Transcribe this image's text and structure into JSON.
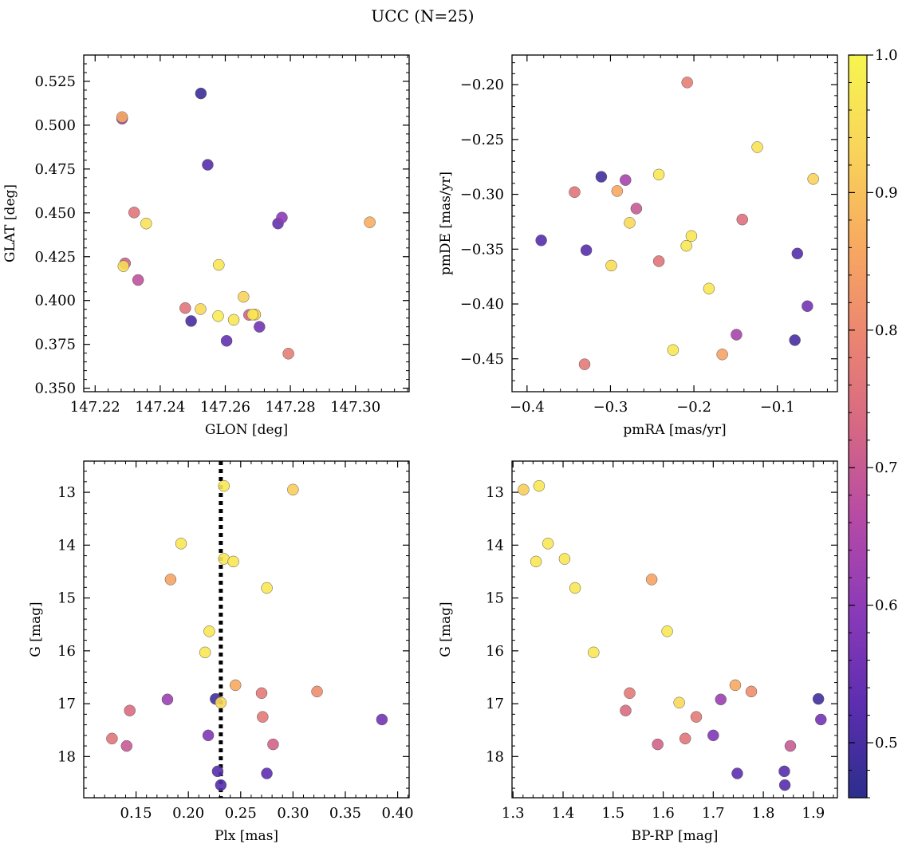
{
  "figure": {
    "title": "UCC (N=25)"
  },
  "colorbar": {
    "range": [
      0.46,
      1.0
    ],
    "ticks": [
      0.5,
      0.6,
      0.7,
      0.8,
      0.9,
      1.0
    ],
    "tick_labels": [
      "0.5",
      "0.6",
      "0.7",
      "0.8",
      "0.9",
      "1.0"
    ],
    "colormap": "plasma",
    "stops": [
      "#2c2e8c",
      "#5c2eb0",
      "#8a3ab8",
      "#b54aa6",
      "#d66883",
      "#ec8670",
      "#f8ab60",
      "#f9d55a",
      "#f7f550"
    ]
  },
  "chart_data": [
    {
      "type": "scatter",
      "xlabel": "GLON [deg]",
      "ylabel": "GLAT [deg]",
      "xlim": [
        147.2165,
        147.3165
      ],
      "ylim": [
        0.348,
        0.54
      ],
      "xticks": [
        147.22,
        147.24,
        147.26,
        147.28,
        147.3
      ],
      "xtick_labels": [
        "147.22",
        "147.24",
        "147.26",
        "147.28",
        "147.30"
      ],
      "yticks": [
        0.35,
        0.375,
        0.4,
        0.425,
        0.45,
        0.475,
        0.5,
        0.525
      ],
      "ytick_labels": [
        "0.350",
        "0.375",
        "0.400",
        "0.425",
        "0.450",
        "0.475",
        "0.500",
        "0.525"
      ],
      "points": [
        {
          "x": 147.2283,
          "y": 0.5046,
          "c": 0.86
        },
        {
          "x": 147.2283,
          "y": 0.5037,
          "c": 0.62
        },
        {
          "x": 147.2525,
          "y": 0.5181,
          "c": 0.48
        },
        {
          "x": 147.2546,
          "y": 0.4774,
          "c": 0.52
        },
        {
          "x": 147.232,
          "y": 0.4502,
          "c": 0.76
        },
        {
          "x": 147.2357,
          "y": 0.4439,
          "c": 0.96
        },
        {
          "x": 147.2774,
          "y": 0.4473,
          "c": 0.6
        },
        {
          "x": 147.2762,
          "y": 0.4439,
          "c": 0.54
        },
        {
          "x": 147.3044,
          "y": 0.4446,
          "c": 0.87
        },
        {
          "x": 147.2292,
          "y": 0.4212,
          "c": 0.72
        },
        {
          "x": 147.2287,
          "y": 0.4196,
          "c": 0.95
        },
        {
          "x": 147.258,
          "y": 0.4203,
          "c": 0.97
        },
        {
          "x": 147.2332,
          "y": 0.4117,
          "c": 0.68
        },
        {
          "x": 147.2477,
          "y": 0.3957,
          "c": 0.76
        },
        {
          "x": 147.2524,
          "y": 0.3951,
          "c": 0.94
        },
        {
          "x": 147.2495,
          "y": 0.3883,
          "c": 0.5
        },
        {
          "x": 147.2578,
          "y": 0.3911,
          "c": 0.98
        },
        {
          "x": 147.2626,
          "y": 0.389,
          "c": 0.97
        },
        {
          "x": 147.2656,
          "y": 0.4021,
          "c": 0.93
        },
        {
          "x": 147.2673,
          "y": 0.3918,
          "c": 0.72
        },
        {
          "x": 147.2692,
          "y": 0.392,
          "c": 0.93
        },
        {
          "x": 147.2684,
          "y": 0.392,
          "c": 0.97
        },
        {
          "x": 147.2705,
          "y": 0.385,
          "c": 0.56
        },
        {
          "x": 147.2604,
          "y": 0.377,
          "c": 0.54
        },
        {
          "x": 147.2794,
          "y": 0.3697,
          "c": 0.78
        }
      ]
    },
    {
      "type": "scatter",
      "xlabel": "pmRA [mas/yr]",
      "ylabel": "pmDE [mas/yr]",
      "xlim": [
        -0.418,
        -0.028
      ],
      "ylim": [
        -0.48,
        -0.173
      ],
      "xticks": [
        -0.4,
        -0.3,
        -0.2,
        -0.1
      ],
      "xtick_labels": [
        "−0.4",
        "−0.3",
        "−0.2",
        "−0.1"
      ],
      "yticks": [
        -0.45,
        -0.4,
        -0.35,
        -0.3,
        -0.25,
        -0.2
      ],
      "ytick_labels": [
        "−0.45",
        "−0.40",
        "−0.35",
        "−0.30",
        "−0.25",
        "−0.20"
      ],
      "points": [
        {
          "x": -0.208,
          "y": -0.198,
          "c": 0.78
        },
        {
          "x": -0.124,
          "y": -0.257,
          "c": 0.96
        },
        {
          "x": -0.242,
          "y": -0.282,
          "c": 0.97
        },
        {
          "x": -0.311,
          "y": -0.284,
          "c": 0.49
        },
        {
          "x": -0.282,
          "y": -0.287,
          "c": 0.64
        },
        {
          "x": -0.343,
          "y": -0.298,
          "c": 0.76
        },
        {
          "x": -0.292,
          "y": -0.297,
          "c": 0.86
        },
        {
          "x": -0.057,
          "y": -0.286,
          "c": 0.93
        },
        {
          "x": -0.269,
          "y": -0.313,
          "c": 0.7
        },
        {
          "x": -0.277,
          "y": -0.326,
          "c": 0.94
        },
        {
          "x": -0.142,
          "y": -0.323,
          "c": 0.75
        },
        {
          "x": -0.383,
          "y": -0.342,
          "c": 0.52
        },
        {
          "x": -0.203,
          "y": -0.338,
          "c": 0.97
        },
        {
          "x": -0.209,
          "y": -0.347,
          "c": 0.97
        },
        {
          "x": -0.329,
          "y": -0.351,
          "c": 0.52
        },
        {
          "x": -0.076,
          "y": -0.354,
          "c": 0.52
        },
        {
          "x": -0.242,
          "y": -0.361,
          "c": 0.76
        },
        {
          "x": -0.299,
          "y": -0.365,
          "c": 0.95
        },
        {
          "x": -0.182,
          "y": -0.386,
          "c": 0.97
        },
        {
          "x": -0.064,
          "y": -0.402,
          "c": 0.56
        },
        {
          "x": -0.149,
          "y": -0.428,
          "c": 0.64
        },
        {
          "x": -0.079,
          "y": -0.433,
          "c": 0.5
        },
        {
          "x": -0.225,
          "y": -0.442,
          "c": 0.97
        },
        {
          "x": -0.166,
          "y": -0.446,
          "c": 0.85
        },
        {
          "x": -0.331,
          "y": -0.455,
          "c": 0.77
        }
      ]
    },
    {
      "type": "scatter",
      "xlabel": "Plx [mas]",
      "ylabel": "G [mag]",
      "xlim": [
        0.1,
        0.411
      ],
      "ylim": [
        18.78,
        12.41
      ],
      "y_inverted": true,
      "vline_x": 0.231,
      "vline_style": "dotted",
      "xticks": [
        0.15,
        0.2,
        0.25,
        0.3,
        0.35,
        0.4
      ],
      "xtick_labels": [
        "0.15",
        "0.20",
        "0.25",
        "0.30",
        "0.35",
        "0.40"
      ],
      "yticks": [
        13,
        14,
        15,
        16,
        17,
        18
      ],
      "ytick_labels": [
        "13",
        "14",
        "15",
        "16",
        "17",
        "18"
      ],
      "points": [
        {
          "x": 0.234,
          "y": 12.88,
          "c": 0.97
        },
        {
          "x": 0.3,
          "y": 12.95,
          "c": 0.92
        },
        {
          "x": 0.193,
          "y": 13.97,
          "c": 0.97
        },
        {
          "x": 0.234,
          "y": 14.26,
          "c": 0.97
        },
        {
          "x": 0.243,
          "y": 14.31,
          "c": 0.97
        },
        {
          "x": 0.183,
          "y": 14.65,
          "c": 0.85
        },
        {
          "x": 0.275,
          "y": 14.81,
          "c": 0.97
        },
        {
          "x": 0.22,
          "y": 15.63,
          "c": 0.97
        },
        {
          "x": 0.216,
          "y": 16.03,
          "c": 0.97
        },
        {
          "x": 0.245,
          "y": 16.65,
          "c": 0.86
        },
        {
          "x": 0.27,
          "y": 16.8,
          "c": 0.77
        },
        {
          "x": 0.323,
          "y": 16.77,
          "c": 0.81
        },
        {
          "x": 0.226,
          "y": 16.91,
          "c": 0.49
        },
        {
          "x": 0.231,
          "y": 16.98,
          "c": 0.94
        },
        {
          "x": 0.18,
          "y": 16.92,
          "c": 0.62
        },
        {
          "x": 0.144,
          "y": 17.13,
          "c": 0.74
        },
        {
          "x": 0.271,
          "y": 17.25,
          "c": 0.77
        },
        {
          "x": 0.385,
          "y": 17.3,
          "c": 0.56
        },
        {
          "x": 0.219,
          "y": 17.6,
          "c": 0.58
        },
        {
          "x": 0.127,
          "y": 17.66,
          "c": 0.76
        },
        {
          "x": 0.141,
          "y": 17.8,
          "c": 0.7
        },
        {
          "x": 0.281,
          "y": 17.77,
          "c": 0.72
        },
        {
          "x": 0.228,
          "y": 18.28,
          "c": 0.52
        },
        {
          "x": 0.275,
          "y": 18.32,
          "c": 0.53
        },
        {
          "x": 0.231,
          "y": 18.54,
          "c": 0.52
        }
      ]
    },
    {
      "type": "scatter",
      "xlabel": "BP-RP [mag]",
      "ylabel": "G [mag]",
      "xlim": [
        1.298,
        1.948
      ],
      "ylim": [
        18.78,
        12.41
      ],
      "y_inverted": true,
      "xticks": [
        1.3,
        1.4,
        1.5,
        1.6,
        1.7,
        1.8,
        1.9
      ],
      "xtick_labels": [
        "1.3",
        "1.4",
        "1.5",
        "1.6",
        "1.7",
        "1.8",
        "1.9"
      ],
      "yticks": [
        13,
        14,
        15,
        16,
        17,
        18
      ],
      "ytick_labels": [
        "13",
        "14",
        "15",
        "16",
        "17",
        "18"
      ],
      "points": [
        {
          "x": 1.321,
          "y": 12.95,
          "c": 0.92
        },
        {
          "x": 1.352,
          "y": 12.88,
          "c": 0.97
        },
        {
          "x": 1.37,
          "y": 13.97,
          "c": 0.97
        },
        {
          "x": 1.346,
          "y": 14.31,
          "c": 0.97
        },
        {
          "x": 1.403,
          "y": 14.26,
          "c": 0.97
        },
        {
          "x": 1.424,
          "y": 14.81,
          "c": 0.97
        },
        {
          "x": 1.577,
          "y": 14.65,
          "c": 0.85
        },
        {
          "x": 1.608,
          "y": 15.63,
          "c": 0.97
        },
        {
          "x": 1.461,
          "y": 16.03,
          "c": 0.97
        },
        {
          "x": 1.744,
          "y": 16.65,
          "c": 0.86
        },
        {
          "x": 1.776,
          "y": 16.77,
          "c": 0.81
        },
        {
          "x": 1.533,
          "y": 16.8,
          "c": 0.77
        },
        {
          "x": 1.715,
          "y": 16.92,
          "c": 0.62
        },
        {
          "x": 1.632,
          "y": 16.98,
          "c": 0.94
        },
        {
          "x": 1.91,
          "y": 16.91,
          "c": 0.49
        },
        {
          "x": 1.525,
          "y": 17.13,
          "c": 0.74
        },
        {
          "x": 1.666,
          "y": 17.25,
          "c": 0.77
        },
        {
          "x": 1.915,
          "y": 17.3,
          "c": 0.56
        },
        {
          "x": 1.7,
          "y": 17.6,
          "c": 0.58
        },
        {
          "x": 1.644,
          "y": 17.66,
          "c": 0.76
        },
        {
          "x": 1.589,
          "y": 17.77,
          "c": 0.72
        },
        {
          "x": 1.854,
          "y": 17.8,
          "c": 0.7
        },
        {
          "x": 1.842,
          "y": 18.28,
          "c": 0.52
        },
        {
          "x": 1.748,
          "y": 18.32,
          "c": 0.53
        },
        {
          "x": 1.843,
          "y": 18.54,
          "c": 0.52
        }
      ]
    }
  ]
}
